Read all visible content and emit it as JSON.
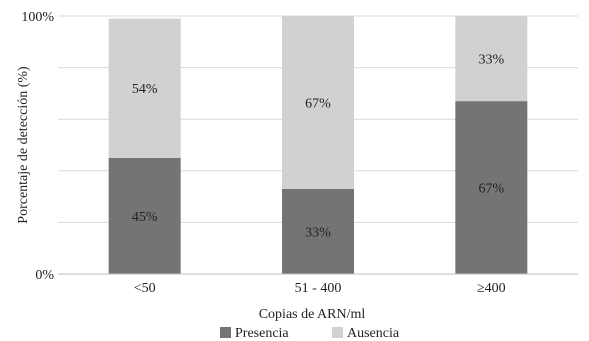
{
  "chart_data": {
    "type": "bar",
    "stacked": true,
    "title": "",
    "xlabel": "Copias de ARN/ml",
    "ylabel": "Porcentaje de detección (%)",
    "ylim": [
      0,
      100
    ],
    "yticks": [
      0,
      100
    ],
    "ytick_labels": [
      "0%",
      "100%"
    ],
    "grid": true,
    "legend_position": "bottom",
    "categories": [
      "<50",
      "51 - 400",
      "≥400"
    ],
    "series": [
      {
        "name": "Presencia",
        "color": "#747474",
        "values": [
          45,
          33,
          67
        ],
        "labels": [
          "45%",
          "33%",
          "67%"
        ]
      },
      {
        "name": "Ausencia",
        "color": "#d1d1d1",
        "values": [
          54,
          67,
          33
        ],
        "labels": [
          "54%",
          "67%",
          "33%"
        ]
      }
    ]
  }
}
